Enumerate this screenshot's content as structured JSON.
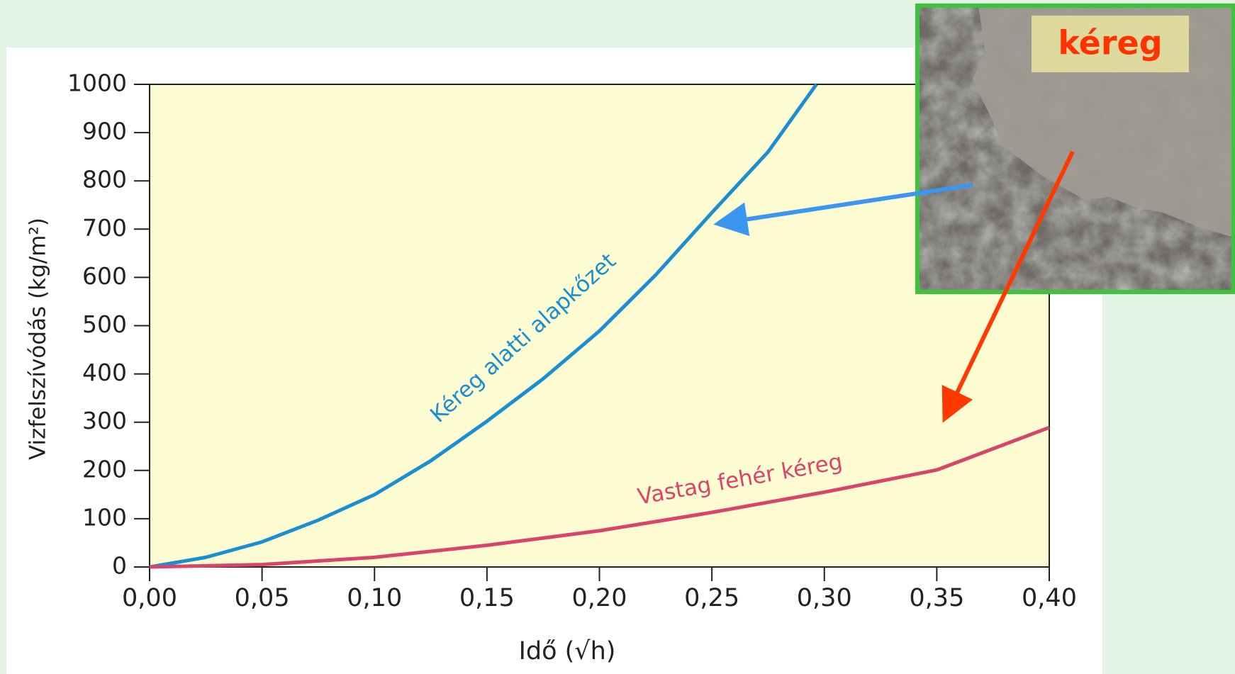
{
  "chart_data": {
    "type": "line",
    "xlabel": "Idő (√h)",
    "ylabel": "Vizfelszívódás (kg/m²)",
    "xlim": [
      0,
      0.4
    ],
    "ylim": [
      0,
      1000
    ],
    "xticks": [
      {
        "value": 0,
        "label": "0,00"
      },
      {
        "value": 0.05,
        "label": "0,05"
      },
      {
        "value": 0.1,
        "label": "0,10"
      },
      {
        "value": 0.15,
        "label": "0,15"
      },
      {
        "value": 0.2,
        "label": "0,20"
      },
      {
        "value": 0.25,
        "label": "0,25"
      },
      {
        "value": 0.3,
        "label": "0,30"
      },
      {
        "value": 0.35,
        "label": "0,35"
      },
      {
        "value": 0.4,
        "label": "0,40"
      }
    ],
    "yticks": [
      0,
      100,
      200,
      300,
      400,
      500,
      600,
      700,
      800,
      900,
      1000
    ],
    "grid": false,
    "background": "#fdfbd2",
    "series": [
      {
        "color": "#1a8fd0",
        "x": [
          0,
          0.025,
          0.05,
          0.075,
          0.1,
          0.125,
          0.15,
          0.175,
          0.2,
          0.225,
          0.25,
          0.275,
          0.2965
        ],
        "values": [
          0,
          20,
          52,
          97,
          150,
          220,
          302,
          390,
          489,
          605,
          734,
          860,
          1000
        ]
      },
      {
        "color": "#d9456a",
        "x": [
          0,
          0.05,
          0.1,
          0.15,
          0.2,
          0.25,
          0.3,
          0.35,
          0.4
        ],
        "values": [
          0,
          5,
          20,
          45,
          75,
          113,
          155,
          201,
          289
        ]
      }
    ],
    "annotations": [
      {
        "text": "Kéreg alatti alapkőzet",
        "color": "#1a8fd0"
      },
      {
        "text": "Vastag fehér kéreg",
        "color": "#d9456a"
      }
    ],
    "photo_label": "kéreg"
  }
}
